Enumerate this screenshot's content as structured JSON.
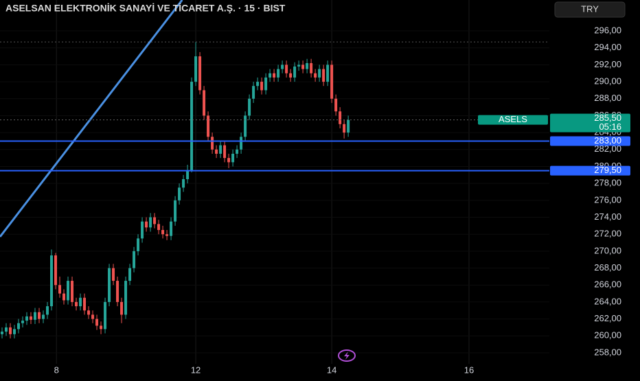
{
  "chart_data": {
    "type": "candlestick",
    "title": "ASELSAN ELEKTRONİK SANAYİ VE TİCARET A.Ş. · 15 · BIST",
    "currency": "TRY",
    "up_color": "#26a69a",
    "down_color": "#ef5350",
    "open": [
      260.2,
      260.5,
      261,
      260.2,
      260.8,
      261.5,
      261.8,
      262.3,
      261.9,
      262.8,
      262,
      262.5,
      263.5,
      269.5,
      266,
      265,
      264.2,
      266.5,
      264,
      263.5,
      264.5,
      263,
      262.5,
      262,
      261.2,
      260.8,
      264,
      268,
      266.5,
      264,
      262.5,
      266.5,
      268,
      270,
      271.5,
      273.5,
      272.8,
      274,
      273.2,
      272.5,
      272,
      271.8,
      273.5,
      276,
      277.5,
      278.5,
      279.5,
      290,
      293,
      289,
      286,
      283.5,
      282,
      281.5,
      282.5,
      281,
      280.5,
      281.5,
      282,
      283.5,
      286,
      288,
      289.5,
      290,
      289,
      290.5,
      291,
      290.5,
      291.5,
      292,
      291,
      290.5,
      291.8,
      292,
      291.5,
      292.2,
      291,
      290.5,
      291.5,
      290,
      292,
      288,
      286.5,
      285,
      284
    ],
    "high": [
      261,
      261.5,
      261.5,
      261.3,
      262,
      262.3,
      262.8,
      262.8,
      263.3,
      263.3,
      263,
      264,
      270.2,
      269.8,
      267,
      265.5,
      267,
      267,
      264.5,
      265,
      265,
      263.5,
      263,
      262.5,
      261.7,
      264.5,
      268.5,
      268.5,
      267,
      264.5,
      267,
      268.5,
      270.5,
      272,
      274,
      274,
      274.5,
      274.5,
      273.7,
      273,
      272.5,
      274,
      276.5,
      278,
      279,
      280.2,
      290.5,
      294.7,
      293.5,
      289.5,
      286.5,
      284,
      282.5,
      283,
      283,
      281.5,
      282,
      282.5,
      284,
      286.5,
      288.5,
      290,
      290.5,
      290.5,
      291,
      291.5,
      291.5,
      292,
      292.5,
      292.5,
      291.5,
      292.3,
      292.5,
      292.5,
      292.7,
      292.7,
      291.5,
      292,
      292,
      292.5,
      292.5,
      288.5,
      287,
      285.5,
      286
    ],
    "low": [
      259.7,
      260,
      259.7,
      259.7,
      260.3,
      261,
      261.3,
      261.4,
      261.4,
      261.5,
      261.5,
      262,
      263,
      265.5,
      264.5,
      263.7,
      263.7,
      263.5,
      263,
      263,
      262.5,
      262,
      261.5,
      260.7,
      260.2,
      260.3,
      263.5,
      266,
      263.5,
      261.5,
      262,
      266,
      267.5,
      269.5,
      271,
      272.3,
      272.3,
      272.7,
      272,
      271.5,
      271.3,
      271.3,
      273,
      275.5,
      277,
      278,
      279.3,
      289.5,
      288.5,
      285.5,
      283,
      281.5,
      281,
      281,
      280.5,
      279.8,
      280,
      281,
      281.5,
      283,
      285.5,
      287.5,
      289,
      288.5,
      288.5,
      290,
      290,
      290,
      291,
      290.5,
      290,
      290,
      291.3,
      291,
      291,
      290.5,
      290,
      290,
      289.5,
      289.5,
      287.5,
      286,
      284.5,
      283.3,
      283.5
    ],
    "close": [
      260.5,
      261,
      260.2,
      260.8,
      261.5,
      261.8,
      262.3,
      261.9,
      262.8,
      262,
      262.5,
      263.5,
      269.5,
      266,
      265,
      264.2,
      266.5,
      264,
      263.5,
      264.5,
      263,
      262.5,
      262,
      261.2,
      260.8,
      264,
      268,
      266.5,
      264,
      262.5,
      266.5,
      268,
      270,
      271.5,
      273.5,
      272.8,
      274,
      273.2,
      272.5,
      272,
      271.8,
      273.5,
      276,
      277.5,
      278.5,
      279.5,
      290,
      293,
      289,
      286,
      283.5,
      282,
      281.5,
      282.5,
      281,
      280.5,
      281.5,
      282,
      283.5,
      286,
      288,
      289.5,
      290,
      289,
      290.5,
      291,
      290.5,
      291.5,
      292,
      291,
      290.5,
      291.8,
      292,
      291.5,
      292.2,
      291,
      290.5,
      291.5,
      290,
      292,
      288,
      286.5,
      285,
      284,
      285.5
    ],
    "xlim": [
      -0.5,
      132.8
    ],
    "xticks": [
      {
        "value": 13.2,
        "label": "8"
      },
      {
        "value": 47,
        "label": "12"
      },
      {
        "value": 80,
        "label": "14"
      },
      {
        "value": 113.3,
        "label": "16"
      }
    ],
    "ylim": [
      256.7,
      299.65
    ],
    "yticks": [
      {
        "value": 258,
        "label": "258,00"
      },
      {
        "value": 260,
        "label": "260,00"
      },
      {
        "value": 262,
        "label": "262,00"
      },
      {
        "value": 264,
        "label": "264,00"
      },
      {
        "value": 266,
        "label": "266,00"
      },
      {
        "value": 268,
        "label": "268,00"
      },
      {
        "value": 270,
        "label": "270,00"
      },
      {
        "value": 272,
        "label": "272,00"
      },
      {
        "value": 274,
        "label": "274,00"
      },
      {
        "value": 276,
        "label": "276,00"
      },
      {
        "value": 278,
        "label": "278,00"
      },
      {
        "value": 280,
        "label": "280,00"
      },
      {
        "value": 282,
        "label": "282,00"
      },
      {
        "value": 284,
        "label": "284,00"
      },
      {
        "value": 286,
        "label": "286,00"
      },
      {
        "value": 288,
        "label": "288,00"
      },
      {
        "value": 290,
        "label": "290,00"
      },
      {
        "value": 292,
        "label": "292,00"
      },
      {
        "value": 294,
        "label": "294,00"
      },
      {
        "value": 296,
        "label": "296,00"
      }
    ],
    "hlines": [
      {
        "value": 283,
        "label": "283,00",
        "color": "#2962ff"
      },
      {
        "value": 279.5,
        "label": "279,50",
        "color": "#2962ff"
      }
    ],
    "last_price": {
      "value": 285.5,
      "label": "285,50",
      "symbol": "ASELS",
      "countdown": "05:16",
      "color": "#089981"
    },
    "trendline": {
      "x": [
        -0.5,
        43.7
      ],
      "y": [
        271.7,
        299.65
      ],
      "color": "#4a90e2"
    }
  }
}
